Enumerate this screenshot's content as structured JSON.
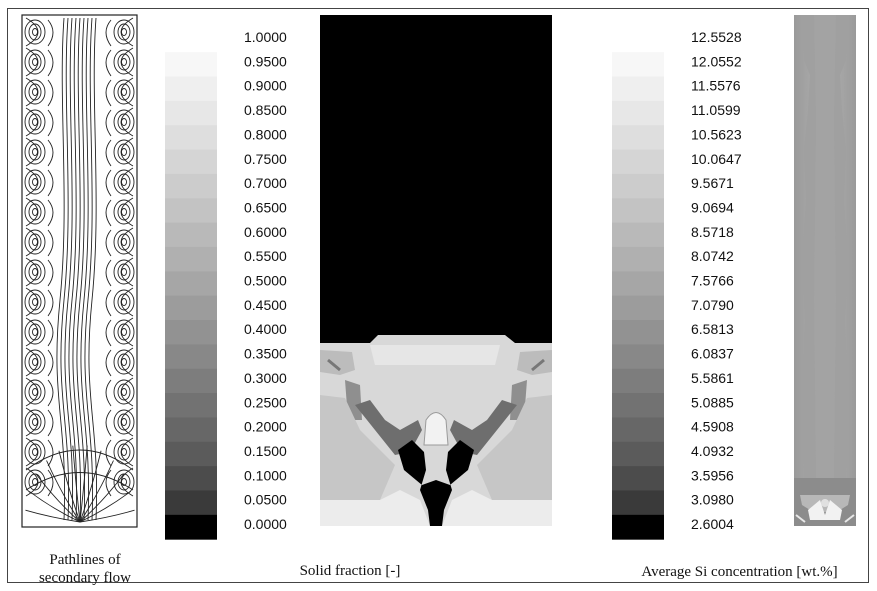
{
  "panels": {
    "pathlines": {
      "caption_line1": "Pathlines of",
      "caption_line2": "secondary flow"
    },
    "solid_fraction": {
      "caption": "Solid fraction [-]",
      "legend_values": [
        "1.0000",
        "0.9500",
        "0.9000",
        "0.8500",
        "0.8000",
        "0.7500",
        "0.7000",
        "0.6500",
        "0.6000",
        "0.5500",
        "0.5000",
        "0.4500",
        "0.4000",
        "0.3500",
        "0.3000",
        "0.2500",
        "0.2000",
        "0.1500",
        "0.1000",
        "0.0500",
        "0.0000"
      ],
      "legend_colors": [
        "#f7f7f7",
        "#efefef",
        "#e7e7e7",
        "#dedede",
        "#d5d5d5",
        "#cccccc",
        "#c3c3c3",
        "#b9b9b9",
        "#b0b0b0",
        "#a6a6a6",
        "#9c9c9c",
        "#929292",
        "#888888",
        "#7d7d7d",
        "#727272",
        "#676767",
        "#5b5b5b",
        "#4c4c4c",
        "#3a3a3a",
        "#000000"
      ]
    },
    "si_concentration": {
      "caption": "Average Si concentration [wt.%]",
      "legend_values": [
        "12.5528",
        "12.0552",
        "11.5576",
        "11.0599",
        "10.5623",
        "10.0647",
        "9.5671",
        "9.0694",
        "8.5718",
        "8.0742",
        "7.5766",
        "7.0790",
        "6.5813",
        "6.0837",
        "5.5861",
        "5.0885",
        "4.5908",
        "4.0932",
        "3.5956",
        "3.0980",
        "2.6004"
      ],
      "legend_colors": [
        "#f7f7f7",
        "#efefef",
        "#e7e7e7",
        "#dedede",
        "#d5d5d5",
        "#cccccc",
        "#c3c3c3",
        "#b9b9b9",
        "#b0b0b0",
        "#a6a6a6",
        "#9c9c9c",
        "#929292",
        "#888888",
        "#7d7d7d",
        "#727272",
        "#676767",
        "#5b5b5b",
        "#4c4c4c",
        "#3a3a3a",
        "#000000"
      ]
    }
  }
}
